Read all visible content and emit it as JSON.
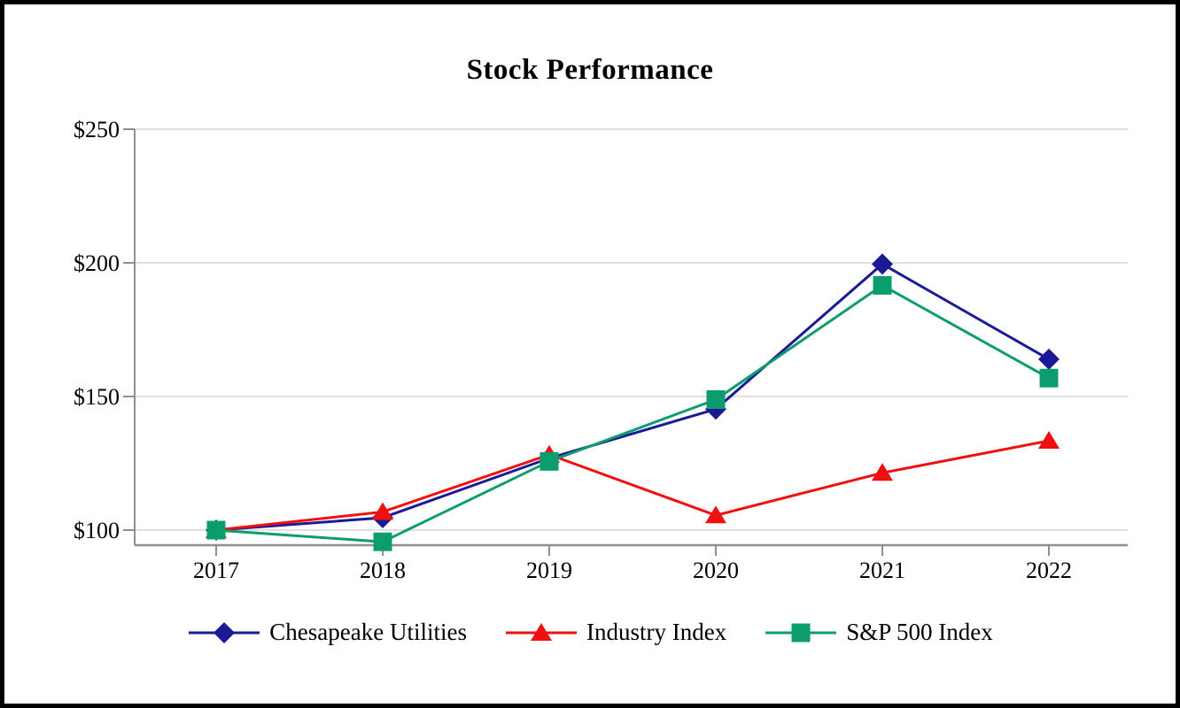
{
  "title": "Stock Performance",
  "chart_data": {
    "type": "line",
    "categories": [
      "2017",
      "2018",
      "2019",
      "2020",
      "2021",
      "2022"
    ],
    "series": [
      {
        "name": "Chesapeake Utilities",
        "marker": "diamond",
        "color": "#1A1A96",
        "values": [
          100.0,
          104.65,
          126.9,
          145.27,
          199.55,
          163.93
        ]
      },
      {
        "name": "Industry Index",
        "marker": "triangle",
        "color": "#F01010",
        "values": [
          100.0,
          106.8,
          128.24,
          105.54,
          121.42,
          133.43
        ]
      },
      {
        "name": "S&P 500 Index",
        "marker": "square",
        "color": "#0D9C6E",
        "values": [
          100.0,
          95.62,
          125.72,
          148.85,
          191.58,
          156.88
        ]
      }
    ],
    "y_ticks": [
      {
        "label": "$250",
        "value": 250
      },
      {
        "label": "$200",
        "value": 200
      },
      {
        "label": "$150",
        "value": 150
      },
      {
        "label": "$100",
        "value": 100
      }
    ],
    "ylim": [
      94,
      250
    ],
    "xlabel": "",
    "ylabel": "",
    "grid": "horizontal",
    "legend_position": "bottom",
    "grid_color": "#DBDBDB",
    "axis_color": "#8F8F8F",
    "text_color": "#000000"
  }
}
